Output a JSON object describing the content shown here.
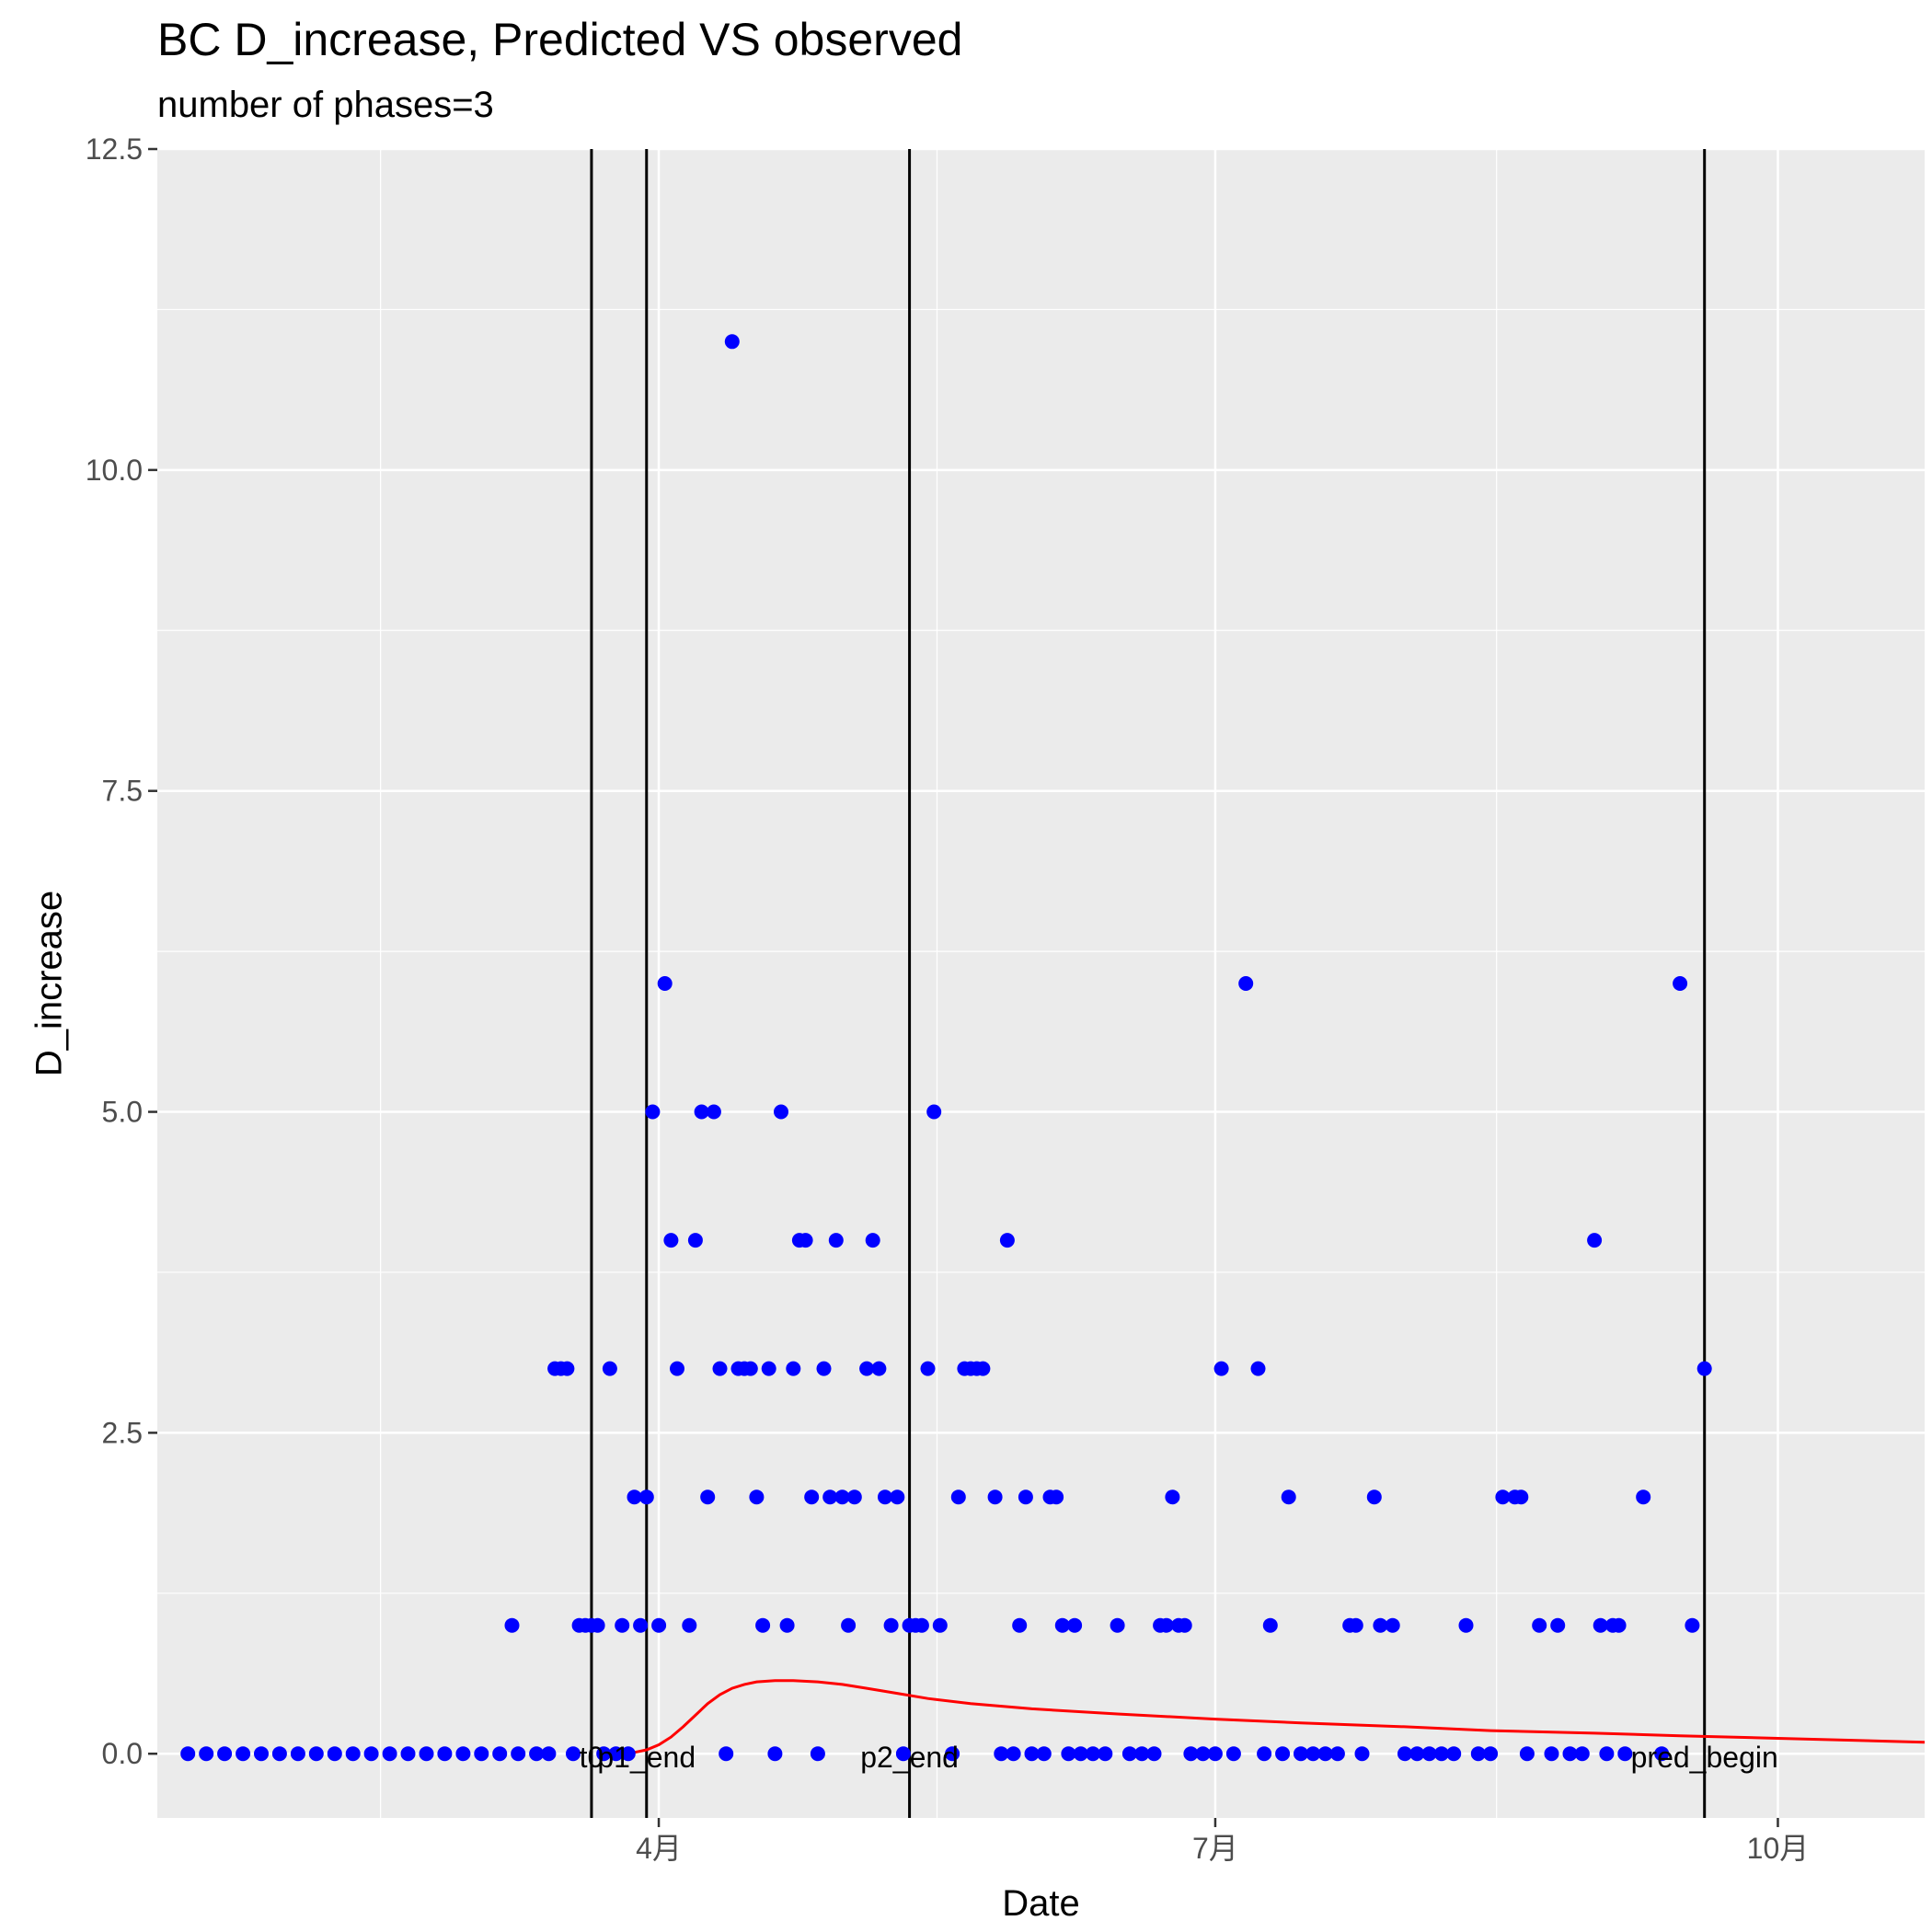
{
  "chart_data": {
    "type": "scatter",
    "title": "BC D_increase, Predicted VS observed",
    "subtitle": "number of phases=3",
    "xlabel": "Date",
    "ylabel": "D_increase",
    "ylim": [
      -0.5,
      12.5
    ],
    "y_ticks": [
      0.0,
      2.5,
      5.0,
      7.5,
      10.0,
      12.5
    ],
    "y_tick_labels": [
      "0.0",
      "2.5",
      "5.0",
      "7.5",
      "10.0",
      "12.5"
    ],
    "xlim": [
      "2020-01-10",
      "2020-10-25"
    ],
    "x_ticks": [
      "2020-04-01",
      "2020-07-01",
      "2020-10-01"
    ],
    "x_tick_labels": [
      "4月",
      "7月",
      "10月"
    ],
    "grid": true,
    "colors": {
      "observed": "#0000ff",
      "predicted": "#ff0000",
      "panel": "#ebebeb",
      "grid": "#ffffff",
      "vline": "#000000"
    },
    "series": [
      {
        "type": "scatter",
        "color": "#0000ff",
        "points": [
          [
            "2020-01-15",
            0
          ],
          [
            "2020-01-18",
            0
          ],
          [
            "2020-01-21",
            0
          ],
          [
            "2020-01-24",
            0
          ],
          [
            "2020-01-27",
            0
          ],
          [
            "2020-01-30",
            0
          ],
          [
            "2020-02-02",
            0
          ],
          [
            "2020-02-05",
            0
          ],
          [
            "2020-02-08",
            0
          ],
          [
            "2020-02-11",
            0
          ],
          [
            "2020-02-14",
            0
          ],
          [
            "2020-02-17",
            0
          ],
          [
            "2020-02-20",
            0
          ],
          [
            "2020-02-23",
            0
          ],
          [
            "2020-02-26",
            0
          ],
          [
            "2020-02-29",
            0
          ],
          [
            "2020-03-03",
            0
          ],
          [
            "2020-03-06",
            0
          ],
          [
            "2020-03-08",
            1
          ],
          [
            "2020-03-09",
            0
          ],
          [
            "2020-03-12",
            0
          ],
          [
            "2020-03-14",
            0
          ],
          [
            "2020-03-15",
            3
          ],
          [
            "2020-03-16",
            3
          ],
          [
            "2020-03-17",
            3
          ],
          [
            "2020-03-18",
            0
          ],
          [
            "2020-03-19",
            1
          ],
          [
            "2020-03-20",
            1
          ],
          [
            "2020-03-21",
            1
          ],
          [
            "2020-03-22",
            1
          ],
          [
            "2020-03-23",
            0
          ],
          [
            "2020-03-24",
            3
          ],
          [
            "2020-03-25",
            0
          ],
          [
            "2020-03-26",
            1
          ],
          [
            "2020-03-27",
            0
          ],
          [
            "2020-03-28",
            2
          ],
          [
            "2020-03-29",
            1
          ],
          [
            "2020-03-30",
            2
          ],
          [
            "2020-03-31",
            5
          ],
          [
            "2020-04-01",
            1
          ],
          [
            "2020-04-02",
            6
          ],
          [
            "2020-04-03",
            4
          ],
          [
            "2020-04-04",
            3
          ],
          [
            "2020-04-06",
            1
          ],
          [
            "2020-04-07",
            4
          ],
          [
            "2020-04-08",
            5
          ],
          [
            "2020-04-09",
            2
          ],
          [
            "2020-04-10",
            5
          ],
          [
            "2020-04-11",
            3
          ],
          [
            "2020-04-12",
            0
          ],
          [
            "2020-04-13",
            11
          ],
          [
            "2020-04-14",
            3
          ],
          [
            "2020-04-15",
            3
          ],
          [
            "2020-04-16",
            3
          ],
          [
            "2020-04-17",
            2
          ],
          [
            "2020-04-18",
            1
          ],
          [
            "2020-04-19",
            3
          ],
          [
            "2020-04-20",
            0
          ],
          [
            "2020-04-21",
            5
          ],
          [
            "2020-04-22",
            1
          ],
          [
            "2020-04-23",
            3
          ],
          [
            "2020-04-24",
            4
          ],
          [
            "2020-04-25",
            4
          ],
          [
            "2020-04-26",
            2
          ],
          [
            "2020-04-27",
            0
          ],
          [
            "2020-04-28",
            3
          ],
          [
            "2020-04-29",
            2
          ],
          [
            "2020-04-30",
            4
          ],
          [
            "2020-05-01",
            2
          ],
          [
            "2020-05-02",
            1
          ],
          [
            "2020-05-03",
            2
          ],
          [
            "2020-05-05",
            3
          ],
          [
            "2020-05-06",
            4
          ],
          [
            "2020-05-07",
            3
          ],
          [
            "2020-05-08",
            2
          ],
          [
            "2020-05-09",
            1
          ],
          [
            "2020-05-10",
            2
          ],
          [
            "2020-05-11",
            0
          ],
          [
            "2020-05-12",
            1
          ],
          [
            "2020-05-13",
            1
          ],
          [
            "2020-05-14",
            1
          ],
          [
            "2020-05-15",
            3
          ],
          [
            "2020-05-16",
            5
          ],
          [
            "2020-05-17",
            1
          ],
          [
            "2020-05-19",
            0
          ],
          [
            "2020-05-20",
            2
          ],
          [
            "2020-05-21",
            3
          ],
          [
            "2020-05-22",
            3
          ],
          [
            "2020-05-23",
            3
          ],
          [
            "2020-05-24",
            3
          ],
          [
            "2020-05-26",
            2
          ],
          [
            "2020-05-27",
            0
          ],
          [
            "2020-05-28",
            4
          ],
          [
            "2020-05-29",
            0
          ],
          [
            "2020-05-30",
            1
          ],
          [
            "2020-05-31",
            2
          ],
          [
            "2020-06-01",
            0
          ],
          [
            "2020-06-03",
            0
          ],
          [
            "2020-06-04",
            2
          ],
          [
            "2020-06-05",
            2
          ],
          [
            "2020-06-06",
            1
          ],
          [
            "2020-06-07",
            0
          ],
          [
            "2020-06-08",
            1
          ],
          [
            "2020-06-09",
            0
          ],
          [
            "2020-06-11",
            0
          ],
          [
            "2020-06-13",
            0
          ],
          [
            "2020-06-15",
            1
          ],
          [
            "2020-06-17",
            0
          ],
          [
            "2020-06-19",
            0
          ],
          [
            "2020-06-21",
            0
          ],
          [
            "2020-06-22",
            1
          ],
          [
            "2020-06-23",
            1
          ],
          [
            "2020-06-24",
            2
          ],
          [
            "2020-06-25",
            1
          ],
          [
            "2020-06-26",
            1
          ],
          [
            "2020-06-27",
            0
          ],
          [
            "2020-06-29",
            0
          ],
          [
            "2020-07-01",
            0
          ],
          [
            "2020-07-02",
            3
          ],
          [
            "2020-07-04",
            0
          ],
          [
            "2020-07-06",
            6
          ],
          [
            "2020-07-08",
            3
          ],
          [
            "2020-07-09",
            0
          ],
          [
            "2020-07-10",
            1
          ],
          [
            "2020-07-12",
            0
          ],
          [
            "2020-07-13",
            2
          ],
          [
            "2020-07-15",
            0
          ],
          [
            "2020-07-17",
            0
          ],
          [
            "2020-07-19",
            0
          ],
          [
            "2020-07-21",
            0
          ],
          [
            "2020-07-23",
            1
          ],
          [
            "2020-07-24",
            1
          ],
          [
            "2020-07-25",
            0
          ],
          [
            "2020-07-27",
            2
          ],
          [
            "2020-07-28",
            1
          ],
          [
            "2020-07-30",
            1
          ],
          [
            "2020-08-01",
            0
          ],
          [
            "2020-08-03",
            0
          ],
          [
            "2020-08-05",
            0
          ],
          [
            "2020-08-07",
            0
          ],
          [
            "2020-08-09",
            0
          ],
          [
            "2020-08-11",
            1
          ],
          [
            "2020-08-13",
            0
          ],
          [
            "2020-08-15",
            0
          ],
          [
            "2020-08-17",
            2
          ],
          [
            "2020-08-19",
            2
          ],
          [
            "2020-08-20",
            2
          ],
          [
            "2020-08-21",
            0
          ],
          [
            "2020-08-23",
            1
          ],
          [
            "2020-08-25",
            0
          ],
          [
            "2020-08-26",
            1
          ],
          [
            "2020-08-28",
            0
          ],
          [
            "2020-08-30",
            0
          ],
          [
            "2020-09-01",
            4
          ],
          [
            "2020-09-02",
            1
          ],
          [
            "2020-09-03",
            0
          ],
          [
            "2020-09-04",
            1
          ],
          [
            "2020-09-05",
            1
          ],
          [
            "2020-09-06",
            0
          ],
          [
            "2020-09-09",
            2
          ],
          [
            "2020-09-12",
            0
          ],
          [
            "2020-09-15",
            6
          ],
          [
            "2020-09-17",
            1
          ],
          [
            "2020-09-19",
            3
          ]
        ]
      },
      {
        "type": "line",
        "color": "#ff0000",
        "points": [
          [
            "2020-03-26",
            0
          ],
          [
            "2020-03-28",
            0.01
          ],
          [
            "2020-03-30",
            0.03
          ],
          [
            "2020-04-01",
            0.07
          ],
          [
            "2020-04-03",
            0.13
          ],
          [
            "2020-04-05",
            0.21
          ],
          [
            "2020-04-07",
            0.3
          ],
          [
            "2020-04-09",
            0.39
          ],
          [
            "2020-04-11",
            0.46
          ],
          [
            "2020-04-13",
            0.51
          ],
          [
            "2020-04-15",
            0.54
          ],
          [
            "2020-04-17",
            0.56
          ],
          [
            "2020-04-20",
            0.57
          ],
          [
            "2020-04-23",
            0.57
          ],
          [
            "2020-04-27",
            0.56
          ],
          [
            "2020-05-01",
            0.54
          ],
          [
            "2020-05-05",
            0.51
          ],
          [
            "2020-05-10",
            0.47
          ],
          [
            "2020-05-15",
            0.43
          ],
          [
            "2020-05-22",
            0.39
          ],
          [
            "2020-06-01",
            0.35
          ],
          [
            "2020-06-15",
            0.31
          ],
          [
            "2020-07-01",
            0.27
          ],
          [
            "2020-07-15",
            0.24
          ],
          [
            "2020-08-01",
            0.21
          ],
          [
            "2020-08-15",
            0.18
          ],
          [
            "2020-09-01",
            0.16
          ],
          [
            "2020-09-15",
            0.14
          ],
          [
            "2020-10-01",
            0.12
          ],
          [
            "2020-10-25",
            0.09
          ]
        ]
      }
    ],
    "vlines": [
      {
        "date": "2020-03-21",
        "label": "t0"
      },
      {
        "date": "2020-03-30",
        "label": "p1_end"
      },
      {
        "date": "2020-05-12",
        "label": "p2_end"
      },
      {
        "date": "2020-09-19",
        "label": "pred_begin"
      }
    ]
  }
}
